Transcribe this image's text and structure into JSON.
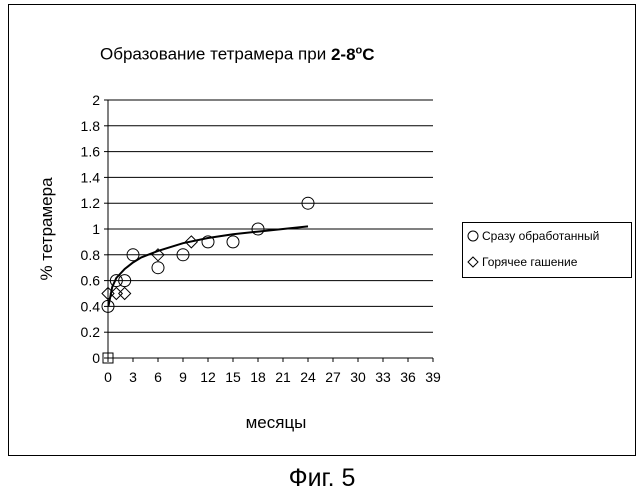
{
  "chart_data": {
    "type": "scatter",
    "title": "Образование тетрамера при",
    "title_emphasis": "2-8°C",
    "title_emphasis_base": "2-8",
    "title_emphasis_sup": "o",
    "title_emphasis_unit": "C",
    "xlabel": "месяцы",
    "ylabel": "% тетрамера",
    "xlim": [
      0,
      39
    ],
    "ylim": [
      0,
      2
    ],
    "x_ticks": [
      "0",
      "3",
      "6",
      "9",
      "12",
      "15",
      "18",
      "21",
      "24",
      "27",
      "30",
      "33",
      "36",
      "39"
    ],
    "y_ticks": [
      "0",
      "0.2",
      "0.4",
      "0.6",
      "0.8",
      "1",
      "1.2",
      "1.4",
      "1.6",
      "1.8",
      "2"
    ],
    "grid": "horizontal",
    "legend_position": "right",
    "series": [
      {
        "name": "Сразу обработанный",
        "marker": "circle",
        "points": [
          [
            0,
            0.4
          ],
          [
            1,
            0.6
          ],
          [
            2,
            0.6
          ],
          [
            3,
            0.8
          ],
          [
            6,
            0.7
          ],
          [
            9,
            0.8
          ],
          [
            12,
            0.9
          ],
          [
            15,
            0.9
          ],
          [
            18,
            1.0
          ],
          [
            24,
            1.2
          ]
        ]
      },
      {
        "name": "Горячее гашение",
        "marker": "diamond",
        "points": [
          [
            0,
            0.5
          ],
          [
            1,
            0.5
          ],
          [
            2,
            0.5
          ],
          [
            6,
            0.8
          ],
          [
            10,
            0.9
          ]
        ]
      },
      {
        "name": "",
        "marker": "square",
        "points": [
          [
            0,
            0
          ]
        ]
      }
    ],
    "trendline": {
      "type": "logarithmic",
      "points": [
        [
          0.05,
          0.4
        ],
        [
          0.5,
          0.55
        ],
        [
          1,
          0.62
        ],
        [
          2,
          0.69
        ],
        [
          3,
          0.74
        ],
        [
          4,
          0.78
        ],
        [
          6,
          0.83
        ],
        [
          9,
          0.89
        ],
        [
          12,
          0.93
        ],
        [
          15,
          0.96
        ],
        [
          18,
          0.98
        ],
        [
          21,
          1.0
        ],
        [
          24,
          1.02
        ]
      ]
    }
  },
  "figure_caption": "Фиг. 5"
}
